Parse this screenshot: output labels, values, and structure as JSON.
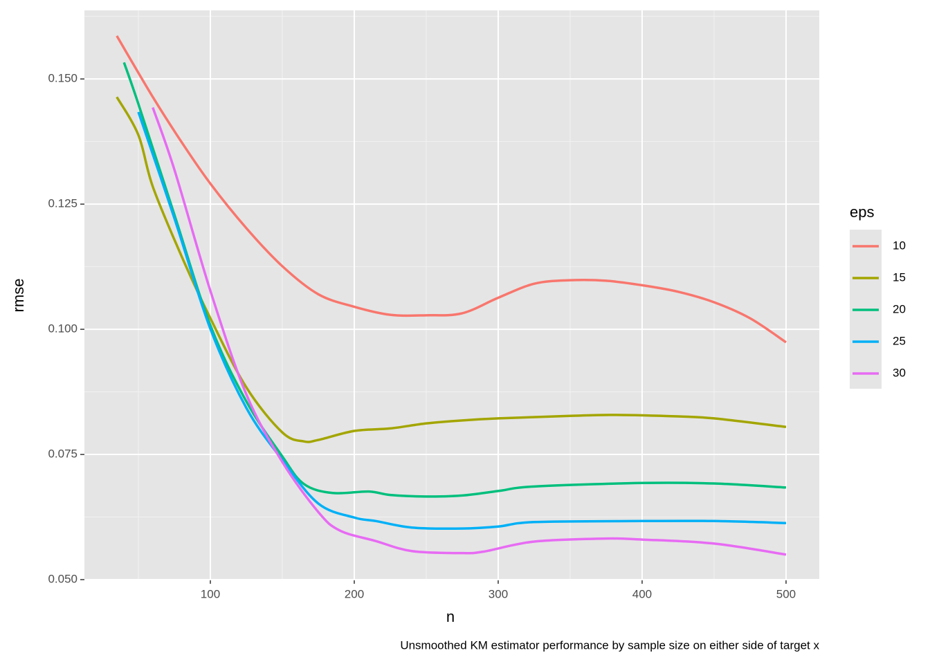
{
  "chart_data": {
    "type": "line",
    "caption": "Unsmoothed KM estimator performance by sample size on either side of target x",
    "x_label": "n",
    "y_label": "rmse",
    "legend_title": "eps",
    "legend_position": "right",
    "grid": true,
    "xlim": [
      12.5,
      523.1
    ],
    "xticks": [
      100,
      200,
      300,
      400,
      500
    ],
    "xminorticks": [
      50,
      150,
      250,
      350,
      450
    ],
    "ylim": [
      0.05,
      0.1637
    ],
    "yticks": [
      {
        "value": 0.05,
        "label": "0.050"
      },
      0.075,
      {
        "value": 0.1,
        "label": "0.100"
      },
      0.125,
      {
        "value": 0.15,
        "label": "0.150"
      }
    ],
    "yminorticks": [
      0.0625,
      0.0875,
      0.1125,
      0.1375,
      0.1625
    ],
    "series": [
      {
        "name": "10",
        "color": "#F8766D",
        "x": [
          35,
          60,
          80,
          100,
          125,
          150,
          175,
          200,
          225,
          250,
          275,
          300,
          325,
          350,
          375,
          400,
          425,
          450,
          475,
          500
        ],
        "values": [
          0.1586,
          0.1464,
          0.1374,
          0.1291,
          0.1202,
          0.1126,
          0.107,
          0.1045,
          0.1029,
          0.1028,
          0.1032,
          0.1063,
          0.1091,
          0.1098,
          0.1097,
          0.1088,
          0.1075,
          0.1054,
          0.1022,
          0.0974
        ]
      },
      {
        "name": "15",
        "color": "#A3A500",
        "x": [
          35,
          50,
          60,
          80,
          100,
          125,
          150,
          165,
          175,
          200,
          225,
          250,
          275,
          300,
          350,
          380,
          425,
          450,
          500
        ],
        "values": [
          0.1464,
          0.1388,
          0.1285,
          0.1146,
          0.1022,
          0.0884,
          0.0794,
          0.0776,
          0.0779,
          0.0797,
          0.0802,
          0.0812,
          0.0818,
          0.0822,
          0.0827,
          0.0829,
          0.0826,
          0.0822,
          0.0805
        ]
      },
      {
        "name": "20",
        "color": "#00BF7D",
        "x": [
          40,
          50,
          75,
          100,
          125,
          150,
          165,
          185,
          210,
          225,
          250,
          275,
          300,
          325,
          400,
          450,
          500
        ],
        "values": [
          0.1533,
          0.145,
          0.1229,
          0.1008,
          0.0856,
          0.0746,
          0.0691,
          0.0673,
          0.0676,
          0.0669,
          0.0666,
          0.0668,
          0.0677,
          0.0686,
          0.0693,
          0.0692,
          0.0684
        ]
      },
      {
        "name": "25",
        "color": "#00B0F6",
        "x": [
          50,
          75,
          100,
          125,
          150,
          175,
          200,
          215,
          240,
          275,
          300,
          325,
          400,
          450,
          500
        ],
        "values": [
          0.1434,
          0.1222,
          0.1001,
          0.0843,
          0.0739,
          0.0652,
          0.0624,
          0.0617,
          0.0604,
          0.0602,
          0.0606,
          0.0615,
          0.0617,
          0.0617,
          0.0613
        ]
      },
      {
        "name": "30",
        "color": "#E76BF3",
        "x": [
          60,
          75,
          100,
          125,
          150,
          175,
          190,
          215,
          240,
          275,
          290,
          325,
          375,
          400,
          450,
          500
        ],
        "values": [
          0.1443,
          0.1319,
          0.1077,
          0.087,
          0.0735,
          0.0635,
          0.0598,
          0.0577,
          0.0557,
          0.0553,
          0.0556,
          0.0576,
          0.0582,
          0.058,
          0.0572,
          0.055
        ]
      }
    ]
  }
}
